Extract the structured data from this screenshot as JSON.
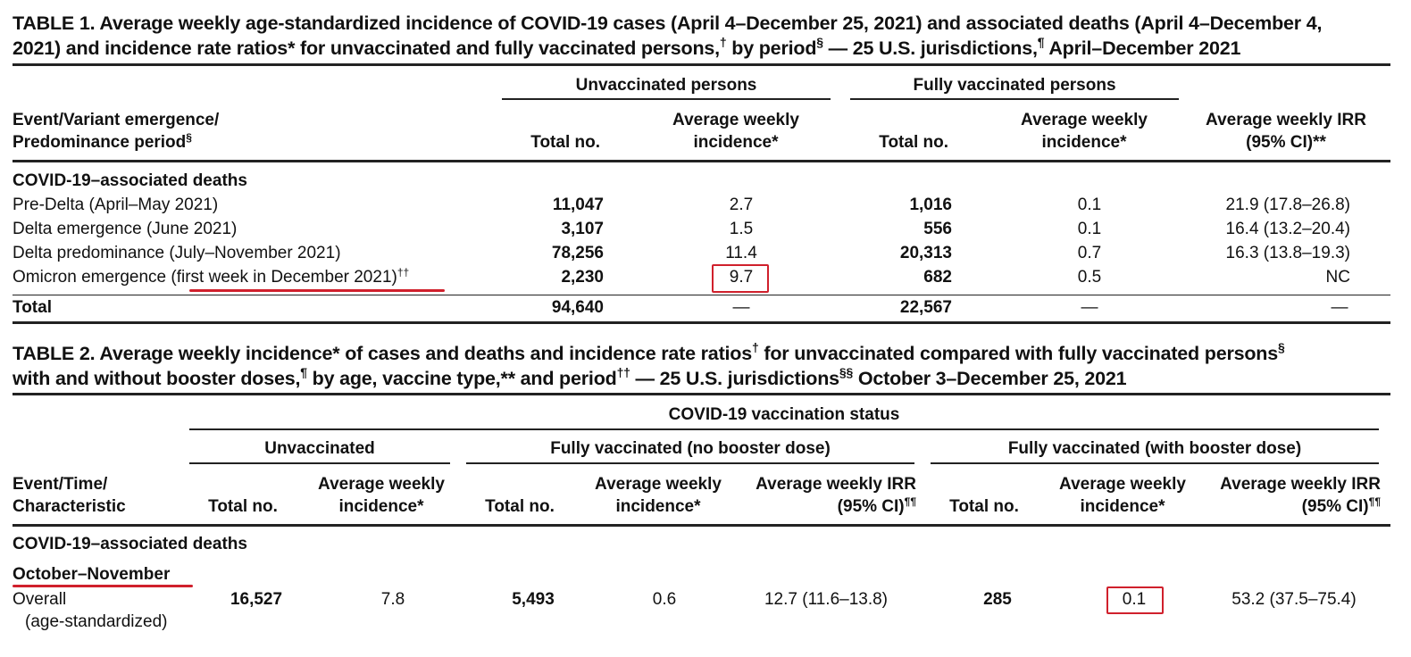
{
  "table1": {
    "title_line1": "TABLE 1. Average weekly age-standardized incidence of COVID-19 cases (April 4–December 25, 2021) and associated deaths (April 4–December 4,",
    "title_line2": "2021) and incidence rate ratios* for unvaccinated and fully vaccinated persons,",
    "title_sup1": "†",
    "title_part2": " by period",
    "title_sup2": "§",
    "title_part3": " — 25 U.S. jurisdictions,",
    "title_sup3": "¶",
    "title_part4": " April–December 2021",
    "group_unvaccinated": "Unvaccinated persons",
    "group_vaccinated": "Fully vaccinated persons",
    "col_event_line1": "Event/Variant emergence/",
    "col_event_line2": "Predominance period",
    "col_event_sup": "§",
    "col_total": "Total no.",
    "col_incidence_line1": "Average weekly",
    "col_incidence_line2": "incidence*",
    "col_irr_line1": "Average weekly IRR",
    "col_irr_line2": "(95% CI)**",
    "section": "COVID-19–associated deaths",
    "rows": [
      {
        "label": "Pre-Delta (April–May 2021)",
        "unvax_total": "11,047",
        "unvax_inc": "2.7",
        "vax_total": "1,016",
        "vax_inc": "0.1",
        "irr": "21.9 (17.8–26.8)"
      },
      {
        "label": "Delta emergence (June 2021)",
        "unvax_total": "3,107",
        "unvax_inc": "1.5",
        "vax_total": "556",
        "vax_inc": "0.1",
        "irr": "16.4 (13.2–20.4)"
      },
      {
        "label": "Delta predominance (July–November 2021)",
        "unvax_total": "78,256",
        "unvax_inc": "11.4",
        "vax_total": "20,313",
        "vax_inc": "0.7",
        "irr": "16.3 (13.8–19.3)"
      },
      {
        "label_part1": "Omicron emergence ",
        "label_part2": "(first week in December 2021)",
        "label_sup": "††",
        "unvax_total": "2,230",
        "unvax_inc": "9.7",
        "vax_total": "682",
        "vax_inc": "0.5",
        "irr": "NC"
      }
    ],
    "total_row": {
      "label": "Total",
      "unvax_total": "94,640",
      "unvax_inc": "—",
      "vax_total": "22,567",
      "vax_inc": "—",
      "irr": "—"
    }
  },
  "table2": {
    "title_part1": "TABLE 2. Average weekly incidence* of cases and deaths and incidence rate ratios",
    "title_sup1": "†",
    "title_part2": " for unvaccinated compared with fully vaccinated persons",
    "title_sup2": "§",
    "title_line2_part1": "with and without booster doses,",
    "title_sup3": "¶",
    "title_line2_part2": " by age, vaccine type,** and period",
    "title_sup4": "††",
    "title_line2_part3": " — 25 U.S. jurisdictions",
    "title_sup5": "§§",
    "title_line2_part4": " October 3–December 25, 2021",
    "status_header": "COVID-19 vaccination status",
    "group_unvaccinated": "Unvaccinated",
    "group_no_booster": "Fully vaccinated (no booster dose)",
    "group_booster": "Fully vaccinated (with booster dose)",
    "col_event_line1": "Event/Time/",
    "col_event_line2": "Characteristic",
    "col_total": "Total no.",
    "col_incidence_line1": "Average weekly",
    "col_incidence_line2": "incidence*",
    "col_irr_line1": "Average weekly IRR",
    "col_irr_line2": "(95% CI)",
    "col_irr_sup": "¶¶",
    "section": "COVID-19–associated deaths",
    "subsection": "October–November",
    "row": {
      "label_line1": "Overall",
      "label_line2": "(age-standardized)",
      "unvax_total": "16,527",
      "unvax_inc": "7.8",
      "nb_total": "5,493",
      "nb_inc": "0.6",
      "nb_irr": "12.7 (11.6–13.8)",
      "b_total": "285",
      "b_inc": "0.1",
      "b_irr": "53.2 (37.5–75.4)"
    }
  },
  "colors": {
    "highlight": "#d0202c",
    "rule": "#222222"
  }
}
